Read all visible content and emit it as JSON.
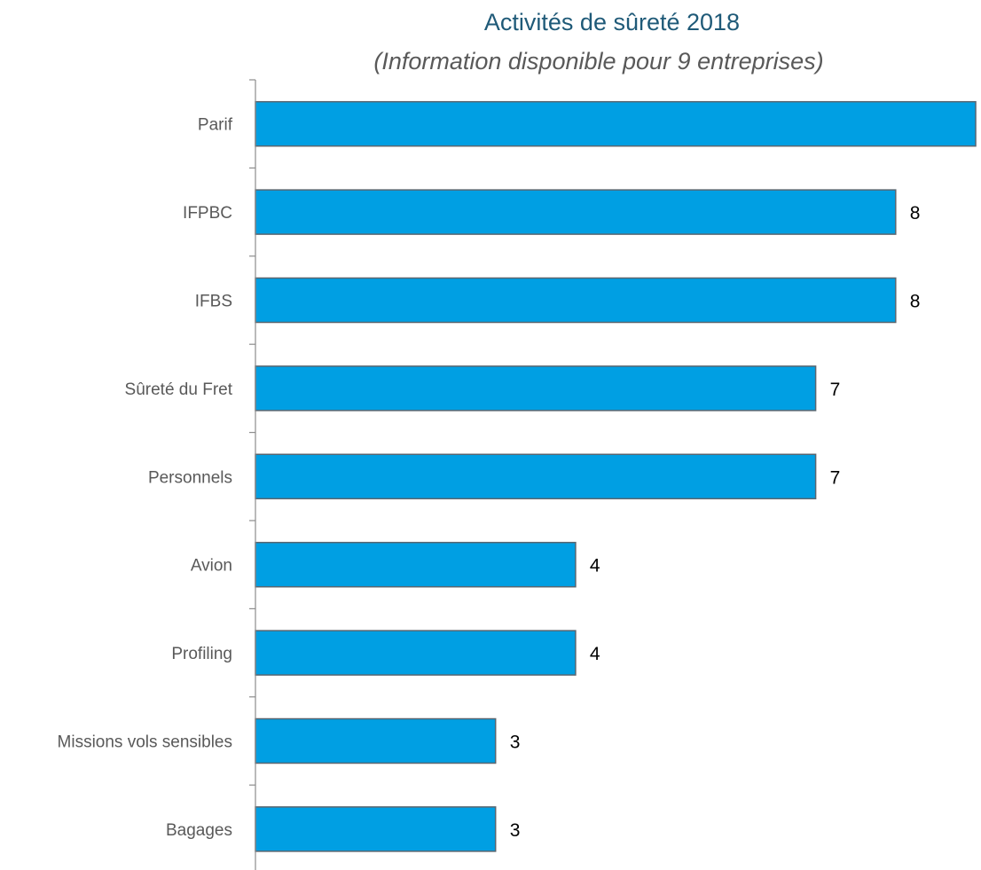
{
  "chart_data": {
    "type": "bar",
    "orientation": "horizontal",
    "title": "Activités de sûreté 2018",
    "subtitle": "(Information disponible pour 9 entreprises)",
    "categories": [
      "Parif",
      "IFPBC",
      "IFBS",
      "Sûreté du Fret",
      "Personnels",
      "Avion",
      "Profiling",
      "Missions vols sensibles",
      "Bagages"
    ],
    "values": [
      9,
      8,
      8,
      7,
      7,
      4,
      4,
      3,
      3
    ],
    "xlim": [
      0,
      9
    ],
    "data_labels": true,
    "grid": false,
    "legend": "none",
    "colors": {
      "bar_fill": "#009FE3",
      "bar_stroke": "#5A6670",
      "title": "#1F5A78",
      "subtitle": "#595959",
      "category_text": "#595959",
      "value_text": "#000000",
      "axis": "#8C8C8C"
    }
  }
}
